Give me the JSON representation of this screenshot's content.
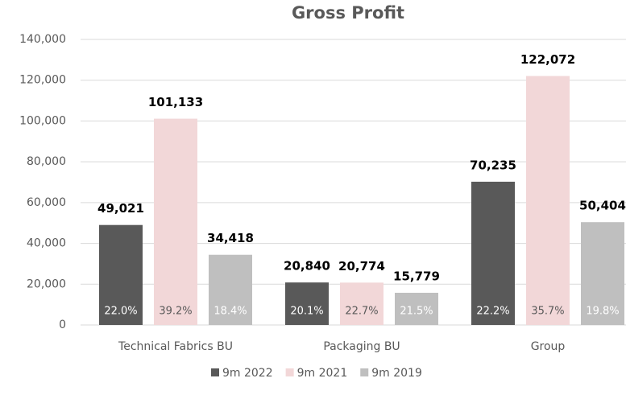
{
  "chart_data": {
    "type": "bar",
    "title": "Gross Profit",
    "categories": [
      "Technical Fabrics BU",
      "Packaging BU",
      "Group"
    ],
    "series": [
      {
        "name": "9m 2022",
        "color": "#595959",
        "values": [
          49021,
          20840,
          70235
        ],
        "value_labels": [
          "49,021",
          "20,840",
          "70,235"
        ],
        "margin_labels": [
          "22.0%",
          "20.1%",
          "22.2%"
        ]
      },
      {
        "name": "9m 2021",
        "color": "#f2d7d8",
        "values": [
          101133,
          20774,
          122072
        ],
        "value_labels": [
          "101,133",
          "20,774",
          "122,072"
        ],
        "margin_labels": [
          "39.2%",
          "22.7%",
          "35.7%"
        ]
      },
      {
        "name": "9m 2019",
        "color": "#bfbfbf",
        "values": [
          34418,
          15779,
          50404
        ],
        "value_labels": [
          "34,418",
          "15,779",
          "50,404"
        ],
        "margin_labels": [
          "18.4%",
          "21.5%",
          "19.8%"
        ]
      }
    ],
    "ylim": [
      0,
      140000
    ],
    "yticks": [
      0,
      {
        "value": 20000,
        "label": "20,000"
      },
      {
        "value": 40000,
        "label": "40,000"
      },
      {
        "value": 60000,
        "label": "60,000"
      },
      {
        "value": 80000,
        "label": "80,000"
      },
      {
        "value": 100000,
        "label": "100,000"
      },
      {
        "value": 120000,
        "label": "120,000"
      },
      {
        "value": 140000,
        "label": "140,000"
      }
    ],
    "grid": true,
    "legend": "bottom"
  }
}
